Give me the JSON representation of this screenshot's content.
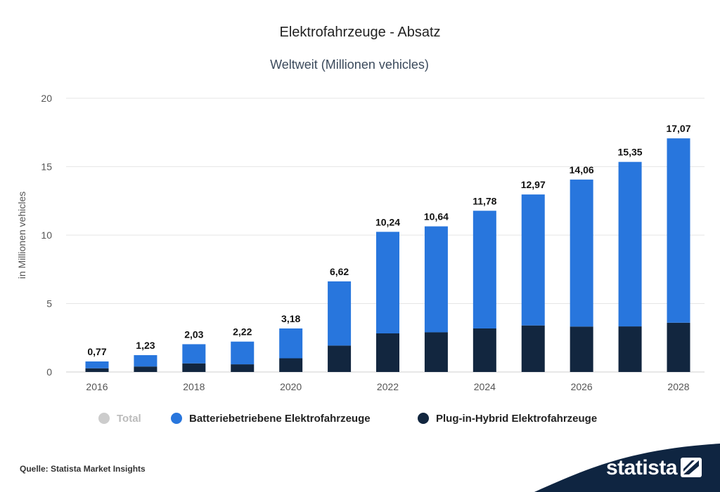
{
  "chart_data": {
    "type": "bar",
    "stacked": true,
    "title": "Elektrofahrzeuge - Absatz",
    "subtitle": "Weltweit (Millionen vehicles)",
    "ylabel": "in Millionen vehicles",
    "xlabel": "",
    "ylim": [
      0,
      20
    ],
    "yticks": [
      0,
      5,
      10,
      15,
      20
    ],
    "grid": true,
    "legend_position": "bottom",
    "categories": [
      "2016",
      "2017",
      "2018",
      "2019",
      "2020",
      "2021",
      "2022",
      "2023",
      "2024",
      "2025",
      "2026",
      "2027",
      "2028"
    ],
    "x_tick_labels": [
      "2016",
      "2018",
      "2020",
      "2022",
      "2024",
      "2026",
      "2028"
    ],
    "series": [
      {
        "name": "Plug-in-Hybrid Elektrofahrzeuge",
        "color": "#12263f",
        "values": [
          0.27,
          0.4,
          0.63,
          0.56,
          1.0,
          1.93,
          2.82,
          2.9,
          3.18,
          3.4,
          3.32,
          3.33,
          3.6
        ]
      },
      {
        "name": "Batteriebetriebene Elektrofahrzeuge",
        "color": "#2876dd",
        "values": [
          0.5,
          0.83,
          1.4,
          1.66,
          2.18,
          4.69,
          7.42,
          7.74,
          8.6,
          9.57,
          10.74,
          12.02,
          13.47
        ]
      }
    ],
    "totals": [
      0.77,
      1.23,
      2.03,
      2.22,
      3.18,
      6.62,
      10.24,
      10.64,
      11.78,
      12.97,
      14.06,
      15.35,
      17.07
    ],
    "total_labels": [
      "0,77",
      "1,23",
      "2,03",
      "2,22",
      "3,18",
      "6,62",
      "10,24",
      "10,64",
      "11,78",
      "12,97",
      "14,06",
      "15,35",
      "17,07"
    ],
    "legend": [
      {
        "label": "Total",
        "color": "#cccccc",
        "text_color": "#bbbbbb"
      },
      {
        "label": "Batteriebetriebene Elektrofahrzeuge",
        "color": "#2876dd",
        "text_color": "#222222"
      },
      {
        "label": "Plug-in-Hybrid Elektrofahrzeuge",
        "color": "#12263f",
        "text_color": "#222222"
      }
    ]
  },
  "footer": {
    "source": "Quelle: Statista Market Insights",
    "brand": "statista",
    "brand_color": "#0f2541"
  }
}
